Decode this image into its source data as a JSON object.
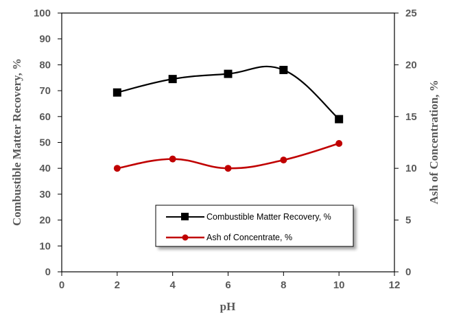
{
  "chart_data": {
    "type": "line",
    "xlabel": "pH",
    "ylabel": "Combustible Matter Recovery, %",
    "y2label": "Ash of Concentration, %",
    "xlim": [
      0,
      12
    ],
    "ylim": [
      0,
      100
    ],
    "y2lim": [
      0,
      25
    ],
    "x_ticks": [
      "0",
      "2",
      "4",
      "6",
      "8",
      "10",
      "12"
    ],
    "y_ticks": [
      "0",
      "10",
      "20",
      "30",
      "40",
      "50",
      "60",
      "70",
      "80",
      "90",
      "100"
    ],
    "y2_ticks": [
      "0",
      "5",
      "10",
      "15",
      "20",
      "25"
    ],
    "grid": false,
    "legend_position": "lower-right",
    "series": [
      {
        "name": "Combustible Matter Recovery, %",
        "axis": "left",
        "color": "#000000",
        "marker": "square",
        "x": [
          2,
          4,
          6,
          8,
          10
        ],
        "y": [
          69.3,
          74.5,
          76.5,
          78,
          59
        ]
      },
      {
        "name": "Ash of Concentrate, %",
        "axis": "right",
        "color": "#c00000",
        "marker": "circle",
        "x": [
          2,
          4,
          6,
          8,
          10
        ],
        "y": [
          10,
          10.9,
          10,
          10.8,
          12.4
        ]
      }
    ]
  }
}
